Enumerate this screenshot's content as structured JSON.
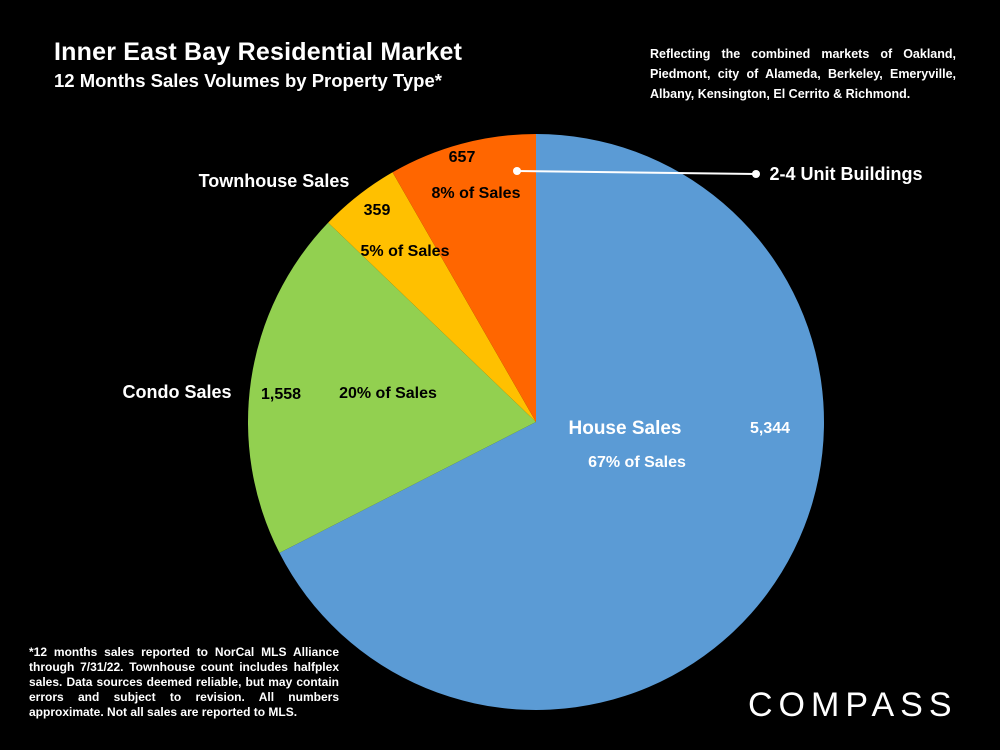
{
  "header": {
    "title": "Inner East Bay Residential Market",
    "subtitle": "12 Months Sales Volumes by Property Type*",
    "note": "Reflecting the combined markets of Oakland, Piedmont, city of Alameda, Berkeley, Emeryville, Albany, Kensington, El Cerrito & Richmond."
  },
  "footnote": "*12 months sales reported to NorCal MLS Alliance through 7/31/22. Townhouse count includes halfplex sales. Data sources deemed reliable, but may contain errors and subject to revision. All numbers approximate. Not all sales are reported to MLS.",
  "brand": {
    "logo_text": "COMPASS"
  },
  "chart_data": {
    "type": "pie",
    "slices": [
      {
        "name": "House Sales",
        "value": 5344,
        "value_label": "5,344",
        "pct_label": "67% of Sales",
        "color": "#5b9bd5"
      },
      {
        "name": "Condo Sales",
        "value": 1558,
        "value_label": "1,558",
        "pct_label": "20% of Sales",
        "color": "#92d050"
      },
      {
        "name": "Townhouse Sales",
        "value": 359,
        "value_label": "359",
        "pct_label": "5% of Sales",
        "color": "#ffc000"
      },
      {
        "name": "2-4 Unit Buildings",
        "value": 657,
        "value_label": "657",
        "pct_label": "8% of Sales",
        "color": "#ff6600"
      }
    ],
    "start": "12 o'clock, clockwise",
    "legend": "none"
  }
}
